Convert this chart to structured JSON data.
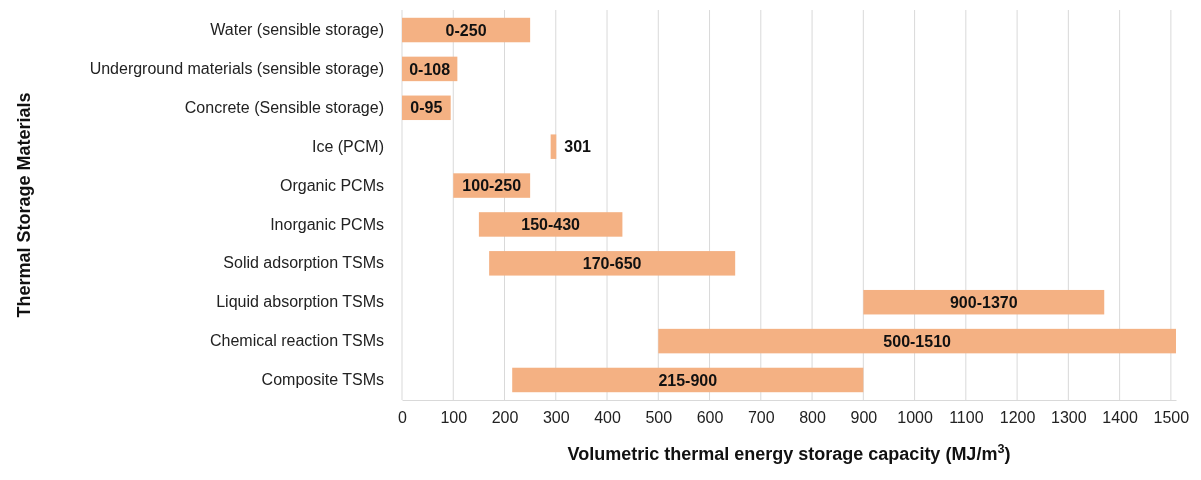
{
  "chart_data": {
    "type": "bar",
    "orientation": "horizontal",
    "categories": [
      "Water (sensible storage)",
      "Underground materials (sensible storage)",
      "Concrete (Sensible storage)",
      "Ice (PCM)",
      "Organic PCMs",
      "Inorganic PCMs",
      "Solid adsorption TSMs",
      "Liquid absorption TSMs",
      "Chemical reaction TSMs",
      "Composite TSMs"
    ],
    "base": [
      0,
      0,
      0,
      290,
      100,
      150,
      170,
      900,
      500,
      215
    ],
    "values": [
      250,
      108,
      95,
      11,
      150,
      280,
      480,
      470,
      1010,
      685
    ],
    "value_labels": [
      "0-250",
      "0-108",
      "0-95",
      "301",
      "100-250",
      "150-430",
      "170-650",
      "900-1370",
      "500-1510",
      "215-900"
    ],
    "color": "#f4b183",
    "xlim": [
      0,
      1510
    ],
    "xticks": [
      0,
      100,
      200,
      300,
      400,
      500,
      600,
      700,
      800,
      900,
      1000,
      1100,
      1200,
      1300,
      1400,
      1500
    ],
    "xlabel": "Volumetric thermal energy storage capacity (MJ/m$^{3}$)",
    "ylabel": "Thermal Storage Materials",
    "grid": "x"
  }
}
